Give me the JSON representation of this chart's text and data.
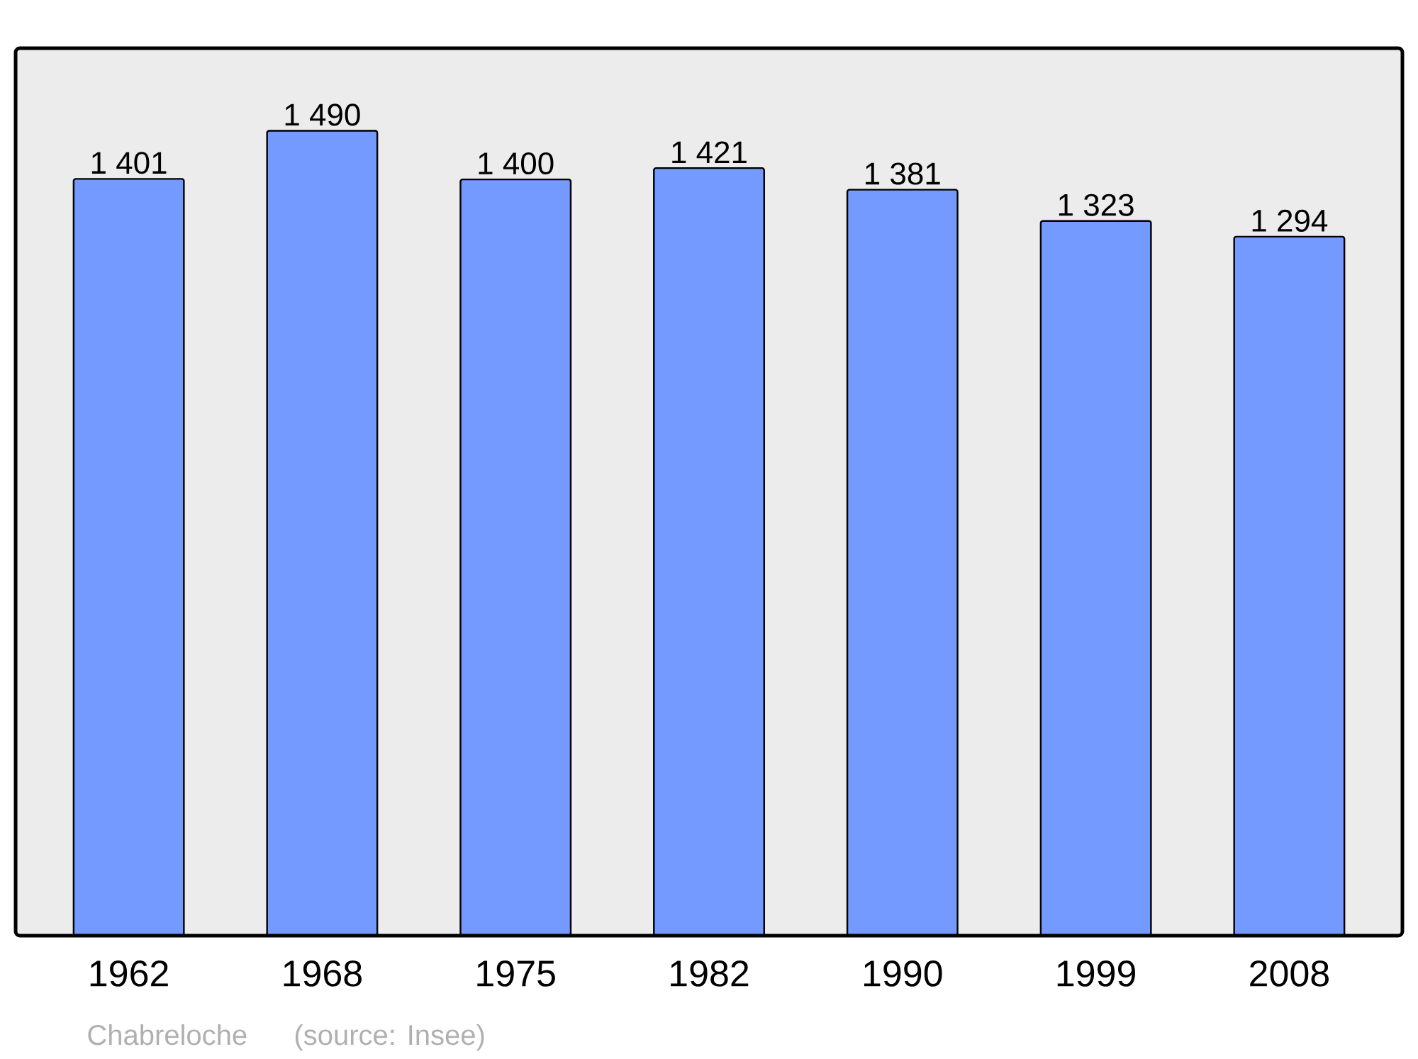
{
  "chart_data": {
    "type": "bar",
    "categories": [
      "1962",
      "1968",
      "1975",
      "1982",
      "1990",
      "1999",
      "2008"
    ],
    "values": [
      1401,
      1490,
      1400,
      1421,
      1381,
      1323,
      1294
    ],
    "value_labels": [
      "1 401",
      "1 490",
      "1 400",
      "1 421",
      "1 381",
      "1 323",
      "1 294"
    ],
    "color": "#7499ff",
    "ylim": [
      0,
      1643
    ],
    "annotations": [
      "Chabreloche",
      "(source: Insee)"
    ]
  }
}
